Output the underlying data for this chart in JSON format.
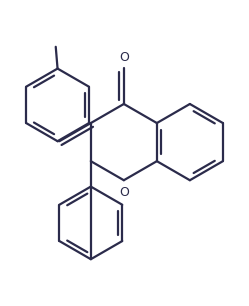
{
  "background_color": "#ffffff",
  "line_color": "#2b2b4b",
  "line_width": 1.6,
  "figsize": [
    2.49,
    3.06
  ],
  "dpi": 100
}
